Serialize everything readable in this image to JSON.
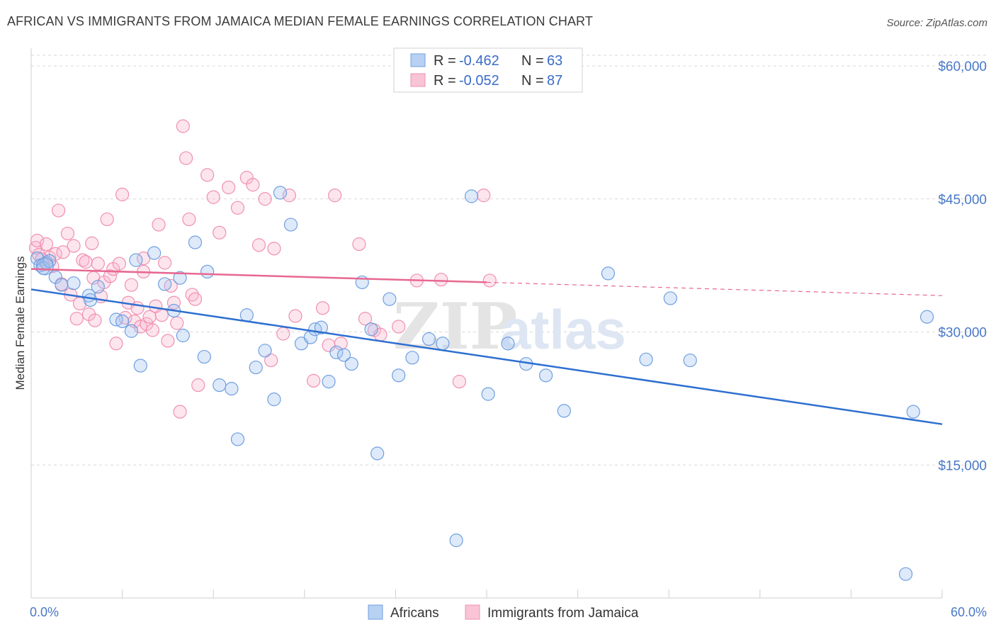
{
  "header": {
    "title": "AFRICAN VS IMMIGRANTS FROM JAMAICA MEDIAN FEMALE EARNINGS CORRELATION CHART",
    "source": "Source: ZipAtlas.com"
  },
  "watermark": {
    "zip": "ZIP",
    "atlas": "atlas"
  },
  "colors": {
    "africans": "#6f9fe0",
    "africans_line": "#2d6fd0",
    "jamaica": "#f090b0",
    "jamaica_line": "#e86890",
    "tick_text": "#4a78c8",
    "grid": "#d8d8d8"
  },
  "legend": {
    "r_label": "R =",
    "n_label": "N =",
    "items": [
      {
        "r": "-0.462",
        "n": "63"
      },
      {
        "r": "-0.052",
        "n": "87"
      }
    ]
  },
  "chart_data": {
    "type": "scatter",
    "xlabel": "",
    "ylabel": "Median Female Earnings",
    "xlim": [
      0,
      60
    ],
    "ylim": [
      0,
      62000
    ],
    "x_tick_labels": [
      "0.0%",
      "60.0%"
    ],
    "y_ticks": [
      15000,
      30000,
      45000,
      60000
    ],
    "y_tick_labels": [
      "$15,000",
      "$30,000",
      "$45,000",
      "$60,000"
    ],
    "legend_placement": "top-center",
    "series": [
      {
        "name": "Africans",
        "trend": {
          "x0": 0,
          "y0": 34800,
          "x1": 60,
          "y1": 19600,
          "dashed_from": null
        },
        "points": [
          [
            0.4,
            38300
          ],
          [
            0.6,
            37500
          ],
          [
            0.8,
            37200
          ],
          [
            1.0,
            37800
          ],
          [
            1.2,
            38000
          ],
          [
            1.6,
            36200
          ],
          [
            2.0,
            35300
          ],
          [
            2.8,
            35500
          ],
          [
            3.8,
            34100
          ],
          [
            4.4,
            35100
          ],
          [
            3.9,
            33600
          ],
          [
            5.6,
            31400
          ],
          [
            6.0,
            31200
          ],
          [
            6.6,
            30100
          ],
          [
            7.2,
            26200
          ],
          [
            8.1,
            38900
          ],
          [
            8.8,
            35400
          ],
          [
            9.4,
            32400
          ],
          [
            9.8,
            36100
          ],
          [
            10.0,
            29600
          ],
          [
            10.8,
            40100
          ],
          [
            11.4,
            27200
          ],
          [
            11.6,
            36800
          ],
          [
            12.4,
            24000
          ],
          [
            13.2,
            23600
          ],
          [
            13.6,
            17900
          ],
          [
            14.2,
            31900
          ],
          [
            14.8,
            26000
          ],
          [
            15.4,
            27900
          ],
          [
            16.0,
            22400
          ],
          [
            16.4,
            45700
          ],
          [
            17.1,
            42100
          ],
          [
            17.8,
            28700
          ],
          [
            18.4,
            29400
          ],
          [
            18.7,
            30300
          ],
          [
            19.1,
            30500
          ],
          [
            19.6,
            24400
          ],
          [
            20.1,
            27700
          ],
          [
            20.6,
            27400
          ],
          [
            21.1,
            26400
          ],
          [
            21.8,
            35600
          ],
          [
            22.4,
            30300
          ],
          [
            22.8,
            16300
          ],
          [
            23.6,
            33700
          ],
          [
            24.2,
            25100
          ],
          [
            25.1,
            27100
          ],
          [
            26.2,
            29200
          ],
          [
            27.1,
            28700
          ],
          [
            28.0,
            6500
          ],
          [
            29.0,
            45300
          ],
          [
            30.1,
            23000
          ],
          [
            31.4,
            28700
          ],
          [
            32.6,
            26400
          ],
          [
            33.9,
            25100
          ],
          [
            35.1,
            21100
          ],
          [
            38.0,
            36600
          ],
          [
            40.5,
            26900
          ],
          [
            42.1,
            33800
          ],
          [
            43.4,
            26800
          ],
          [
            58.1,
            21000
          ],
          [
            59.0,
            31700
          ],
          [
            57.6,
            2700
          ],
          [
            6.9,
            38100
          ]
        ]
      },
      {
        "name": "Immigrants from Jamaica",
        "trend": {
          "x0": 0,
          "y0": 37100,
          "x1": 60,
          "y1": 34100,
          "dashed_from": 30
        },
        "points": [
          [
            0.3,
            39500
          ],
          [
            0.4,
            40300
          ],
          [
            0.5,
            38700
          ],
          [
            0.7,
            38200
          ],
          [
            0.8,
            37600
          ],
          [
            1.0,
            39900
          ],
          [
            1.2,
            38400
          ],
          [
            1.4,
            37400
          ],
          [
            1.6,
            38800
          ],
          [
            1.8,
            43700
          ],
          [
            2.0,
            35400
          ],
          [
            2.1,
            39000
          ],
          [
            2.4,
            41100
          ],
          [
            2.6,
            34200
          ],
          [
            2.8,
            39700
          ],
          [
            3.0,
            31500
          ],
          [
            3.2,
            33200
          ],
          [
            3.4,
            38100
          ],
          [
            3.6,
            37900
          ],
          [
            3.8,
            32000
          ],
          [
            4.0,
            40000
          ],
          [
            4.1,
            36100
          ],
          [
            4.2,
            31300
          ],
          [
            4.4,
            37700
          ],
          [
            4.6,
            34000
          ],
          [
            4.8,
            35600
          ],
          [
            5.0,
            42700
          ],
          [
            5.2,
            36300
          ],
          [
            5.4,
            37100
          ],
          [
            5.6,
            28700
          ],
          [
            5.8,
            37700
          ],
          [
            6.0,
            45500
          ],
          [
            6.2,
            31600
          ],
          [
            6.4,
            33300
          ],
          [
            6.6,
            35300
          ],
          [
            6.8,
            31200
          ],
          [
            7.0,
            32700
          ],
          [
            7.2,
            30600
          ],
          [
            7.4,
            36800
          ],
          [
            7.6,
            30900
          ],
          [
            7.8,
            31700
          ],
          [
            8.0,
            30200
          ],
          [
            8.2,
            32900
          ],
          [
            8.4,
            42100
          ],
          [
            8.6,
            31900
          ],
          [
            8.8,
            37800
          ],
          [
            9.0,
            29000
          ],
          [
            9.2,
            35200
          ],
          [
            9.4,
            33300
          ],
          [
            9.6,
            31000
          ],
          [
            9.8,
            21000
          ],
          [
            10.0,
            53200
          ],
          [
            10.2,
            49600
          ],
          [
            10.4,
            42700
          ],
          [
            10.6,
            34200
          ],
          [
            10.8,
            33700
          ],
          [
            11.0,
            24000
          ],
          [
            11.6,
            47700
          ],
          [
            12.0,
            45200
          ],
          [
            12.4,
            41200
          ],
          [
            13.0,
            46300
          ],
          [
            13.6,
            44000
          ],
          [
            14.2,
            47400
          ],
          [
            14.6,
            46600
          ],
          [
            15.0,
            39800
          ],
          [
            15.4,
            45000
          ],
          [
            15.8,
            26800
          ],
          [
            16.0,
            39400
          ],
          [
            16.6,
            29800
          ],
          [
            17.0,
            45400
          ],
          [
            17.4,
            31800
          ],
          [
            18.6,
            24500
          ],
          [
            19.2,
            32700
          ],
          [
            19.6,
            28500
          ],
          [
            20.0,
            45400
          ],
          [
            20.4,
            28700
          ],
          [
            21.6,
            39900
          ],
          [
            22.0,
            31500
          ],
          [
            22.6,
            30200
          ],
          [
            23.0,
            29700
          ],
          [
            24.2,
            30600
          ],
          [
            25.4,
            35800
          ],
          [
            27.0,
            35900
          ],
          [
            28.2,
            24400
          ],
          [
            29.8,
            45400
          ],
          [
            30.2,
            35800
          ],
          [
            7.4,
            38300
          ]
        ]
      }
    ]
  },
  "bottom_legend": {
    "items": [
      "Africans",
      "Immigrants from Jamaica"
    ]
  }
}
